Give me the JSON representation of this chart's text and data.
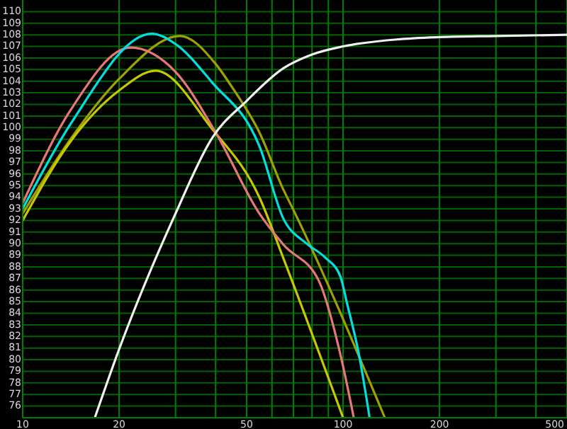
{
  "chart_data": {
    "type": "line",
    "log": "x",
    "grid": true,
    "marker": "none",
    "line_style": "solid",
    "xlim": [
      10,
      500
    ],
    "xticks": [
      10,
      20,
      {
        "value": 30,
        "label": null
      },
      {
        "value": 40,
        "label": null
      },
      50,
      {
        "value": 60,
        "label": null
      },
      {
        "value": 70,
        "label": null
      },
      {
        "value": 80,
        "label": null
      },
      {
        "value": 90,
        "label": null
      },
      100,
      200,
      {
        "value": 300,
        "label": null
      },
      {
        "value": 400,
        "label": null
      },
      500
    ],
    "ylim": [
      75,
      111
    ],
    "yticks": [
      76,
      77,
      78,
      79,
      80,
      81,
      82,
      83,
      84,
      85,
      86,
      87,
      88,
      89,
      90,
      91,
      92,
      93,
      94,
      95,
      96,
      97,
      98,
      99,
      100,
      101,
      102,
      103,
      104,
      105,
      106,
      107,
      108,
      109,
      110
    ],
    "series": [
      {
        "color": "#a0a000",
        "x": [
          10,
          14.1,
          20,
          31,
          40,
          45,
          55,
          65,
          70,
          135
        ],
        "values": [
          92.6,
          99,
          104.2,
          107.9,
          105.5,
          103.5,
          99.5,
          94.7,
          92.9,
          75
        ]
      },
      {
        "color": "#c8c800",
        "x": [
          10,
          14.1,
          20,
          26,
          39,
          55,
          65,
          100
        ],
        "values": [
          92,
          98.8,
          103.2,
          104.9,
          99.9,
          93.9,
          88.8,
          75
        ]
      },
      {
        "color": "#e87878",
        "x": [
          10,
          14.1,
          21.7,
          30,
          40,
          54.8,
          65.2,
          84,
          98,
          108
        ],
        "values": [
          93.5,
          101.5,
          106.9,
          104.8,
          99.6,
          92.6,
          89.9,
          86.8,
          80.5,
          75
        ]
      },
      {
        "color": "#00e0e0",
        "x": [
          10,
          14.1,
          25.3,
          30,
          39,
          55,
          65,
          77,
          88,
          98,
          103,
          112,
          121
        ],
        "values": [
          93,
          100.3,
          108.1,
          107.2,
          103.9,
          98.3,
          92.2,
          90,
          88.8,
          87.2,
          84.8,
          80.5,
          75
        ]
      },
      {
        "color": "#f0f0f0",
        "x": [
          16.8,
          20,
          30,
          39,
          50,
          65,
          80,
          100,
          147,
          200,
          300,
          500
        ],
        "values": [
          75,
          80.9,
          92.6,
          99.1,
          102.3,
          105.1,
          106.3,
          107,
          107.6,
          107.8,
          107.9,
          108
        ]
      }
    ]
  }
}
